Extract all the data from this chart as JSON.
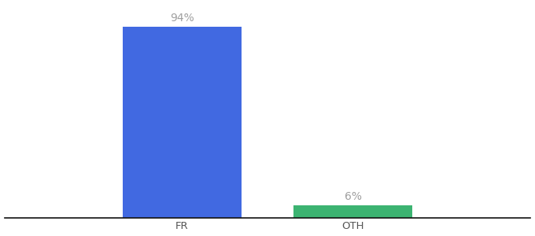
{
  "categories": [
    "FR",
    "OTH"
  ],
  "values": [
    94,
    6
  ],
  "bar_colors": [
    "#4169e1",
    "#3cb371"
  ],
  "label_texts": [
    "94%",
    "6%"
  ],
  "label_color": "#a0a0a0",
  "label_fontsize": 10,
  "tick_fontsize": 9.5,
  "tick_color": "#555555",
  "background_color": "#ffffff",
  "ylim": [
    0,
    105
  ],
  "bar_width": 0.18,
  "figsize": [
    6.8,
    3.0
  ],
  "dpi": 100,
  "axis_line_color": "#111111",
  "x_positions": [
    0.37,
    0.63
  ],
  "xlim": [
    0.1,
    0.9
  ]
}
